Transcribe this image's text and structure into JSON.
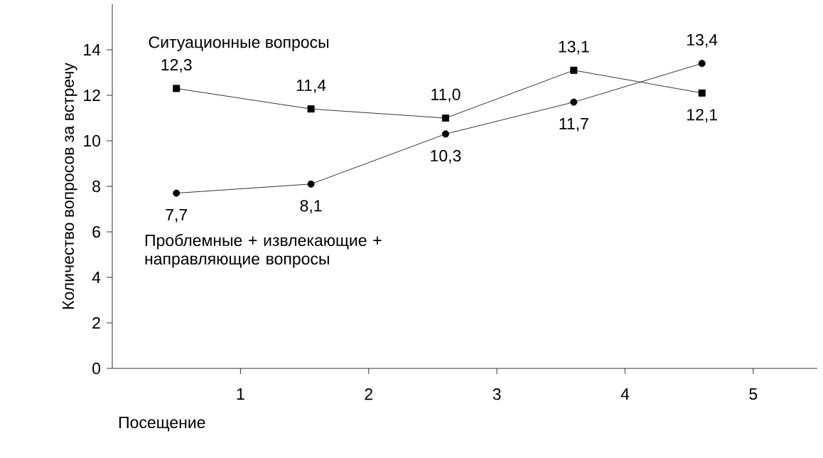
{
  "chart_data": {
    "type": "line",
    "xlabel": "Посещение",
    "ylabel": "Количество вопросов за встречу",
    "x": [
      0.5,
      1.55,
      2.6,
      3.6,
      4.6
    ],
    "xlim": [
      0,
      5.5
    ],
    "xticks": [
      1,
      2,
      3,
      4,
      5
    ],
    "ylim": [
      0,
      16
    ],
    "yticks": [
      0,
      2,
      4,
      6,
      8,
      10,
      12,
      14
    ],
    "grid": false,
    "series": [
      {
        "name": "Ситуационные вопросы",
        "color": "#000000",
        "marker": "square",
        "values": [
          12.3,
          11.4,
          11.0,
          13.1,
          12.1
        ],
        "value_labels": [
          "12,3",
          "11,4",
          "11,0",
          "13,1",
          "12,1"
        ]
      },
      {
        "name": "Проблемные + извлекающие + направляющие вопросы",
        "color": "#000000",
        "marker": "circle",
        "values": [
          7.7,
          8.1,
          10.3,
          11.7,
          13.4
        ],
        "value_labels": [
          "7,7",
          "8,1",
          "10,3",
          "11,7",
          "13,4"
        ]
      }
    ]
  }
}
